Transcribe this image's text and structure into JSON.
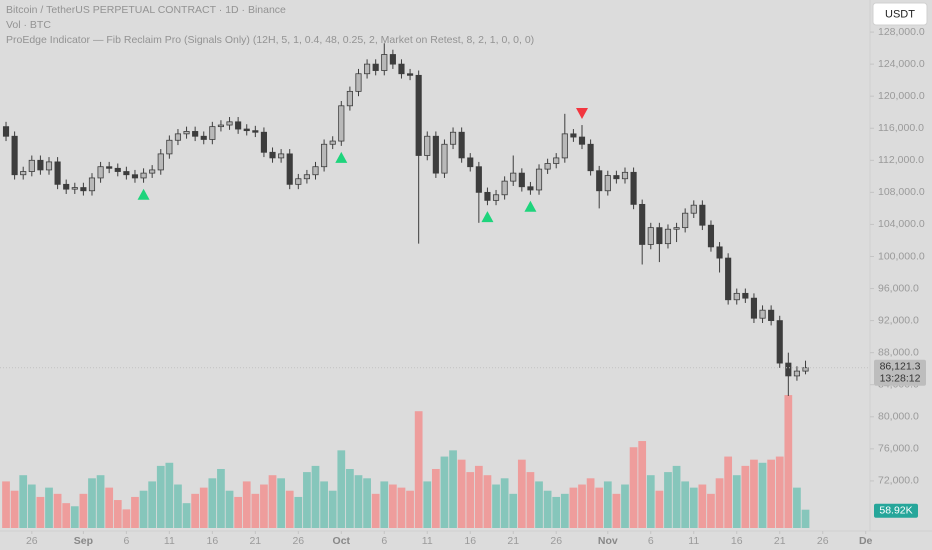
{
  "chart_data": {
    "type": "candlestick",
    "title": "Bitcoin / TetherUS PERPETUAL CONTRACT · 1D · Binance",
    "subtitle": "Vol · BTC",
    "indicator": "ProEdge Indicator — Fib Reclaim Pro (Signals Only) (12H, 5, 1, 0.4, 48, 0.25, 2, Market on Retest, 8, 2, 1, 0, 0, 0)",
    "currency": "USDT",
    "open": [
      116200,
      115000,
      110200,
      110600,
      112000,
      110800,
      111800,
      109000,
      108400,
      108600,
      108200,
      109800,
      111200,
      111000,
      110600,
      110200,
      109800,
      110400,
      110800,
      112800,
      114500,
      115300,
      115600,
      115000,
      114600,
      116200,
      116400,
      116800,
      115900,
      115700,
      115500,
      113000,
      112300,
      112800,
      109000,
      109700,
      110200,
      111200,
      114000,
      114400,
      118800,
      120600,
      122800,
      124000,
      123200,
      125200,
      124000,
      122800,
      122600,
      112600,
      115000,
      110400,
      114000,
      115500,
      112300,
      111200,
      108000,
      107000,
      107700,
      109400,
      110400,
      108700,
      108300,
      110900,
      111600,
      112300,
      115300,
      114900,
      114000,
      110700,
      108200,
      110100,
      109700,
      110500,
      106500,
      101500,
      103600,
      101600,
      103400,
      103600,
      105400,
      106400,
      103900,
      101200,
      99800,
      94600,
      95400,
      94800,
      92300,
      93300,
      92000,
      86700,
      85100,
      85700
    ],
    "high": [
      116800,
      115600,
      111200,
      112600,
      112600,
      112400,
      112400,
      109600,
      109200,
      109200,
      110400,
      111800,
      111800,
      111600,
      111200,
      110800,
      111000,
      111400,
      113400,
      115100,
      115900,
      116200,
      116200,
      115600,
      116800,
      117000,
      117400,
      117400,
      116500,
      116300,
      116100,
      113600,
      113400,
      113400,
      110300,
      110800,
      111800,
      114600,
      115000,
      119400,
      121200,
      123400,
      124600,
      124600,
      126600,
      125800,
      124600,
      123400,
      123200,
      115600,
      115600,
      114600,
      116100,
      116100,
      112900,
      111800,
      108600,
      108300,
      110000,
      112600,
      111000,
      109300,
      111500,
      112200,
      112900,
      117800,
      115900,
      116400,
      114600,
      111300,
      110700,
      110700,
      111100,
      111100,
      107100,
      104200,
      104200,
      104000,
      104200,
      106000,
      107000,
      107000,
      104500,
      101800,
      100400,
      96000,
      96000,
      95400,
      93900,
      93900,
      92600,
      88000,
      86300,
      87000
    ],
    "low": [
      114400,
      109600,
      109600,
      110000,
      110200,
      110200,
      108400,
      107800,
      107800,
      107600,
      107600,
      109200,
      110400,
      110000,
      109600,
      109200,
      109200,
      109800,
      110200,
      112200,
      113900,
      114700,
      114400,
      114000,
      114000,
      115600,
      115800,
      115300,
      115100,
      114900,
      112400,
      111700,
      111700,
      108400,
      108400,
      109100,
      109600,
      110600,
      113400,
      113800,
      118200,
      120000,
      122200,
      122600,
      122600,
      123400,
      122200,
      122000,
      101600,
      112000,
      109800,
      109800,
      113400,
      111700,
      110600,
      104200,
      106400,
      106400,
      107100,
      108800,
      108100,
      107700,
      107700,
      110300,
      111000,
      111700,
      114300,
      113400,
      110100,
      106000,
      107600,
      109100,
      109100,
      105900,
      99000,
      100900,
      99300,
      101000,
      101800,
      103000,
      104800,
      103300,
      100600,
      98000,
      94000,
      94000,
      94200,
      91700,
      91700,
      91400,
      86100,
      82600,
      84500,
      85300
    ],
    "close": [
      115000,
      110200,
      110600,
      112000,
      110800,
      111800,
      109000,
      108400,
      108600,
      108200,
      109800,
      111200,
      111000,
      110600,
      110200,
      109800,
      110400,
      110800,
      112800,
      114500,
      115300,
      115600,
      115000,
      114600,
      116200,
      116400,
      116800,
      115900,
      115700,
      115500,
      113000,
      112300,
      112800,
      109000,
      109700,
      110200,
      111200,
      114000,
      114400,
      118800,
      120600,
      122800,
      124000,
      123200,
      125200,
      124000,
      122800,
      122600,
      112600,
      115000,
      110400,
      114000,
      115500,
      112300,
      111200,
      108000,
      107000,
      107700,
      109400,
      110400,
      108700,
      108300,
      110900,
      111600,
      112300,
      115300,
      114900,
      114000,
      110700,
      108200,
      110100,
      109700,
      110500,
      106500,
      101500,
      103600,
      101600,
      103400,
      103600,
      105400,
      106400,
      103900,
      101200,
      99800,
      94600,
      95400,
      94800,
      92300,
      93300,
      92000,
      86700,
      85100,
      85700,
      86121.3
    ],
    "volume": [
      150,
      120,
      170,
      140,
      100,
      130,
      110,
      80,
      70,
      110,
      160,
      170,
      130,
      90,
      60,
      100,
      120,
      150,
      200,
      210,
      140,
      80,
      110,
      130,
      160,
      190,
      120,
      100,
      150,
      110,
      140,
      170,
      160,
      120,
      100,
      180,
      200,
      150,
      120,
      250,
      190,
      170,
      160,
      110,
      150,
      140,
      130,
      120,
      376,
      150,
      190,
      230,
      250,
      220,
      180,
      200,
      170,
      140,
      160,
      110,
      220,
      180,
      150,
      120,
      100,
      110,
      130,
      140,
      160,
      130,
      150,
      110,
      140,
      260,
      280,
      170,
      120,
      180,
      200,
      150,
      130,
      140,
      110,
      160,
      230,
      170,
      200,
      220,
      210,
      220,
      230,
      428,
      130,
      58.92
    ],
    "volume_lim": [
      0,
      1700
    ],
    "last_price_label": "86,121.3",
    "countdown": "13:28:12",
    "last_volume_label": "58.92K",
    "signals": [
      {
        "index": 16,
        "kind": "buy"
      },
      {
        "index": 39,
        "kind": "buy"
      },
      {
        "index": 56,
        "kind": "buy"
      },
      {
        "index": 61,
        "kind": "buy"
      },
      {
        "index": 67,
        "kind": "sell"
      }
    ],
    "xlim": [
      -0.7,
      100.5
    ],
    "xticks": [
      {
        "value": 3,
        "label": "26"
      },
      {
        "value": 9,
        "label": "Sep"
      },
      {
        "value": 14,
        "label": "6"
      },
      {
        "value": 19,
        "label": "11"
      },
      {
        "value": 24,
        "label": "16"
      },
      {
        "value": 29,
        "label": "21"
      },
      {
        "value": 34,
        "label": "26"
      },
      {
        "value": 39,
        "label": "Oct"
      },
      {
        "value": 44,
        "label": "6"
      },
      {
        "value": 49,
        "label": "11"
      },
      {
        "value": 54,
        "label": "16"
      },
      {
        "value": 59,
        "label": "21"
      },
      {
        "value": 64,
        "label": "26"
      },
      {
        "value": 70,
        "label": "Nov"
      },
      {
        "value": 75,
        "label": "6"
      },
      {
        "value": 80,
        "label": "11"
      },
      {
        "value": 85,
        "label": "16"
      },
      {
        "value": 90,
        "label": "21"
      },
      {
        "value": 95,
        "label": "26"
      },
      {
        "value": 100,
        "label": "De"
      }
    ],
    "ylim": [
      65750,
      132000
    ],
    "yticks": [
      {
        "value": 72000,
        "label": "72,000.0"
      },
      {
        "value": 76000,
        "label": "76,000.0"
      },
      {
        "value": 80000,
        "label": "80,000.0"
      },
      {
        "value": 84000,
        "label": "84,000.0"
      },
      {
        "value": 88000,
        "label": "88,000.0"
      },
      {
        "value": 92000,
        "label": "92,000.0"
      },
      {
        "value": 96000,
        "label": "96,000.0"
      },
      {
        "value": 100000,
        "label": "100,000.0"
      },
      {
        "value": 104000,
        "label": "104,000.0"
      },
      {
        "value": 108000,
        "label": "108,000.0"
      },
      {
        "value": 112000,
        "label": "112,000.0"
      },
      {
        "value": 116000,
        "label": "116,000.0"
      },
      {
        "value": 120000,
        "label": "120,000.0"
      },
      {
        "value": 124000,
        "label": "124,000.0"
      },
      {
        "value": 128000,
        "label": "128,000.0"
      }
    ],
    "up_color": "#b9b9b9",
    "down_color": "#3d3d3d",
    "wick_color": "#3d3d3d",
    "volume_up_color": "#86c6bb",
    "volume_down_color": "#ee9d9c",
    "buy_color": "#1ed47c",
    "sell_color": "#f2363f",
    "grid": false
  }
}
